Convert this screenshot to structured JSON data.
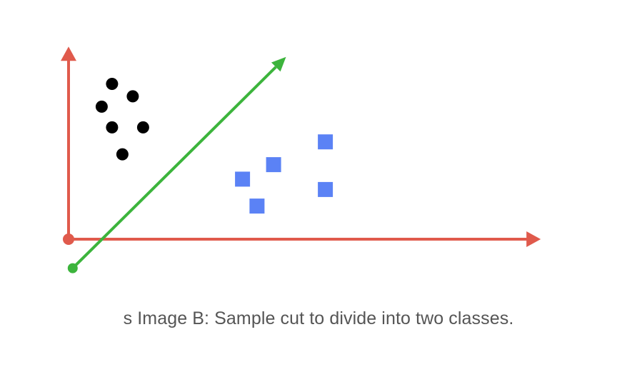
{
  "caption": "s Image B: Sample cut to divide into two classes.",
  "colors": {
    "axes": "#e05a4c",
    "separator": "#3cb43c",
    "class_a": "#000000",
    "class_b": "#5b82f5"
  },
  "icons": {
    "class_a_marker": "circle",
    "class_b_marker": "square"
  },
  "chart_data": {
    "type": "scatter",
    "series": [
      {
        "marker": "circle",
        "color": "#000000",
        "points": [
          [
            2.1,
            7.5
          ],
          [
            3.1,
            6.9
          ],
          [
            1.6,
            6.4
          ],
          [
            2.1,
            5.4
          ],
          [
            3.6,
            5.4
          ],
          [
            2.6,
            4.1
          ]
        ]
      },
      {
        "marker": "square",
        "color": "#5b82f5",
        "points": [
          [
            12.4,
            4.7
          ],
          [
            9.9,
            3.6
          ],
          [
            8.4,
            2.9
          ],
          [
            12.4,
            2.4
          ],
          [
            9.1,
            1.6
          ]
        ]
      }
    ],
    "separator_line": {
      "from": [
        0.2,
        -1.4
      ],
      "to": [
        10.5,
        8.8
      ],
      "arrow_at_end": true
    },
    "xlim": [
      0,
      22.8
    ],
    "ylim": [
      0,
      9.3
    ],
    "grid": false
  }
}
